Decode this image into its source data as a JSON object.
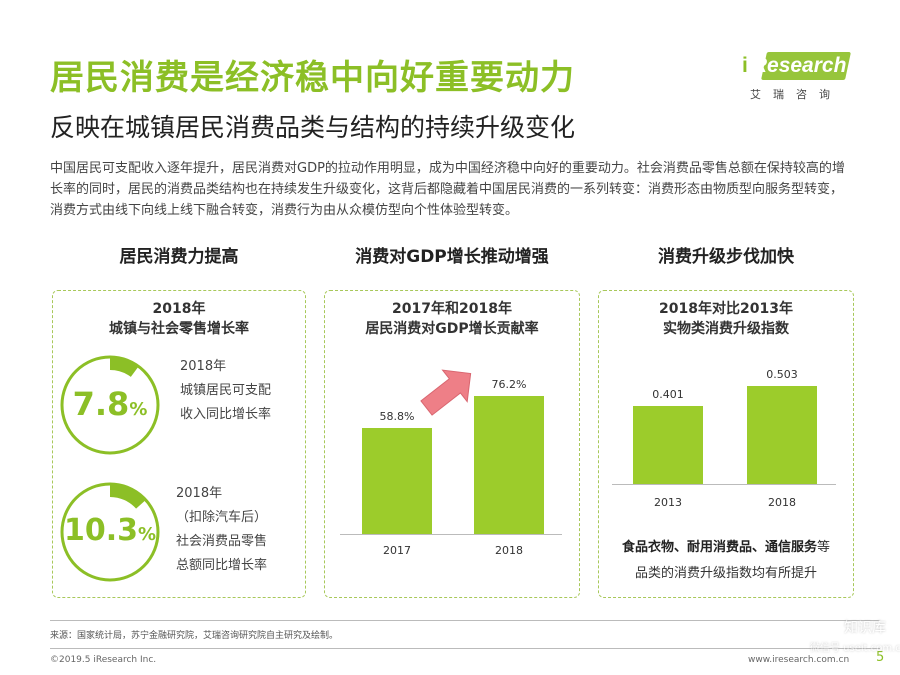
{
  "header": {
    "title": "居民消费是经济稳中向好重要动力",
    "subtitle": "反映在城镇居民消费品类与结构的持续升级变化"
  },
  "logo": {
    "brand_i": "i",
    "brand_rest": "Research",
    "cn": "艾瑞咨询",
    "accent": "#8cbf26"
  },
  "intro": "中国居民可支配收入逐年提升，居民消费对GDP的拉动作用明显，成为中国经济稳中向好的重要动力。社会消费品零售总额在保持较高的增长率的同时，居民的消费品类结构也在持续发生升级变化，这背后都隐藏着中国居民消费的一系列转变：消费形态由物质型向服务型转变，消费方式由线下向线上线下融合转变，消费行为由从众模仿型向个性体验型转变。",
  "columns": {
    "col1": "居民消费力提高",
    "col2": "消费对GDP增长推动增强",
    "col3": "消费升级步伐加快"
  },
  "panel1": {
    "title_line1": "2018年",
    "title_line2": "城镇与社会零售增长率",
    "ring1": {
      "value": "7.8",
      "unit": "%",
      "fraction": 0.078,
      "text_line1": "2018年",
      "text_line2": "城镇居民可支配",
      "text_line3": "收入同比增长率"
    },
    "ring2": {
      "value": "10.3",
      "unit": "%",
      "fraction": 0.103,
      "text_line1": "2018年",
      "text_line2": "（扣除汽车后）",
      "text_line3": "社会消费品零售",
      "text_line4": "总额同比增长率"
    }
  },
  "panel2": {
    "title_line1": "2017年和2018年",
    "title_line2": "居民消费对GDP增长贡献率"
  },
  "panel3": {
    "title_line1": "2018年对比2013年",
    "title_line2": "实物类消费升级指数",
    "caption_bold": "食品衣物、耐用消费品、通信服务",
    "caption_rest1": "等",
    "caption_line2": "品类的消费升级指数均有所提升"
  },
  "chart_data": [
    {
      "type": "bar",
      "categories": [
        "2017",
        "2018"
      ],
      "values": [
        58.8,
        76.2
      ],
      "value_labels": [
        "58.8%",
        "76.2%"
      ],
      "ylim": [
        0,
        100
      ]
    },
    {
      "type": "bar",
      "categories": [
        "2013",
        "2018"
      ],
      "values": [
        0.401,
        0.503
      ],
      "value_labels": [
        "0.401",
        "0.503"
      ],
      "ylim": [
        0,
        0.65
      ]
    }
  ],
  "footer": {
    "source": "来源：国家统计局，苏宁金融研究院，艾瑞咨询研究院自主研究及绘制。",
    "copyright": "©2019.5 iResearch Inc.",
    "website": "www.iresearch.com.cn",
    "page": "5"
  },
  "watermark": {
    "line1": "知识库",
    "line2": "微信号 useit.com.cn"
  }
}
